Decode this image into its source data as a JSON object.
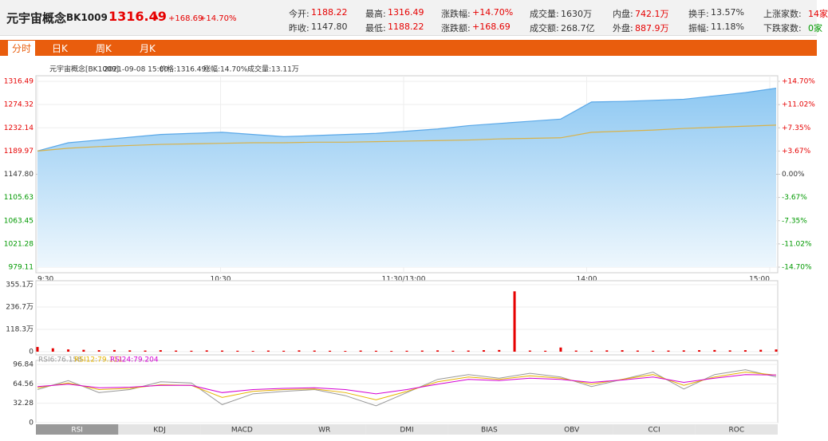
{
  "header": {
    "name": "元宇宙概念",
    "code": "BK1009",
    "price": "1316.49",
    "change": "+168.69",
    "change_pct": "+14.70%"
  },
  "stats": [
    {
      "label": "今开:",
      "value": "1188.22"
    },
    {
      "label": "昨收:",
      "value": "1147.80"
    },
    {
      "label": "最高:",
      "value": "1316.49"
    },
    {
      "label": "最低:",
      "value": "1188.22"
    },
    {
      "label": "涨跌幅:",
      "value": "+14.70%"
    },
    {
      "label": "涨跌额:",
      "value": "+168.69"
    },
    {
      "label": "成交量:",
      "value": "1630万"
    },
    {
      "label": "成交额:",
      "value": "268.7亿"
    },
    {
      "label": "内盘:",
      "value": "742.1万"
    },
    {
      "label": "外盘:",
      "value": "887.9万"
    },
    {
      "label": "换手:",
      "value": "13.57%"
    },
    {
      "label": "振幅:",
      "value": "11.18%"
    },
    {
      "label": "上涨家数:",
      "value": "14家"
    },
    {
      "label": "下跌家数:",
      "value": "0家"
    }
  ],
  "tabs": [
    "分时",
    "日K",
    "周K",
    "月K"
  ],
  "info": [
    "元宇宙概念[BK1009]",
    "2021-09-08 15:00",
    "价格:1316.49",
    "涨幅:14.70%",
    "成交量:13.11万"
  ],
  "indicator_tabs": [
    "RSI",
    "KDJ",
    "MACD",
    "WR",
    "DMI",
    "BIAS",
    "OBV",
    "CCI",
    "ROC"
  ],
  "chart_data": [
    {
      "type": "line",
      "x_labels": [
        "9:30",
        "10:30",
        "11:30/13:00",
        "14:00",
        "15:00"
      ],
      "ylim": [
        979.11,
        1316.49
      ],
      "yticks": [
        1316.49,
        1274.32,
        1232.14,
        1189.97,
        {
          "value": 1147.8,
          "label": "1147.80"
        },
        1105.63,
        1063.45,
        1021.28,
        979.11
      ],
      "y2lim": [
        -14.7,
        14.7
      ],
      "y2ticks": [
        {
          "value": 14.7,
          "label": "+14.70%"
        },
        {
          "value": 11.02,
          "label": "+11.02%"
        },
        {
          "value": 7.35,
          "label": "+7.35%"
        },
        {
          "value": 3.67,
          "label": "+3.67%"
        },
        {
          "value": 0,
          "label": "0.00%"
        },
        {
          "value": -3.67,
          "label": "-3.67%"
        },
        {
          "value": -7.35,
          "label": "-7.35%"
        },
        {
          "value": -11.02,
          "label": "-11.02%"
        },
        {
          "value": -14.7,
          "label": "-14.70%"
        }
      ],
      "series": [
        {
          "color": "#5aa8e8",
          "values": [
            1190,
            1205,
            1210,
            1215,
            1220,
            1222,
            1224,
            1220,
            1216,
            1218,
            1220,
            1222,
            1226,
            1230,
            1236,
            1240,
            1244,
            1248,
            1279,
            1280,
            1282,
            1284,
            1290,
            1296,
            1304
          ]
        },
        {
          "color": "#d8b24a",
          "values": [
            1190,
            1195,
            1198,
            1200,
            1202,
            1203,
            1204,
            1205,
            1205,
            1206,
            1206,
            1207,
            1208,
            1209,
            1210,
            1212,
            1213,
            1214,
            1224,
            1226,
            1228,
            1231,
            1233,
            1235,
            1237
          ]
        }
      ]
    },
    {
      "type": "bar",
      "ylim": [
        0,
        355.1
      ],
      "yticks": [
        {
          "value": 355.1,
          "label": "355.1万"
        },
        {
          "value": 236.7,
          "label": "236.7万"
        },
        {
          "value": 118.3,
          "label": "118.3万"
        },
        0
      ],
      "color": "#e60000",
      "values": [
        25,
        18,
        12,
        10,
        8,
        9,
        7,
        6,
        8,
        6,
        5,
        7,
        6,
        5,
        4,
        6,
        5,
        7,
        6,
        5,
        4,
        6,
        5,
        4,
        5,
        6,
        7,
        5,
        6,
        8,
        9,
        320,
        6,
        5,
        22,
        6,
        5,
        7,
        8,
        6,
        5,
        6,
        7,
        8,
        9,
        7,
        8,
        10,
        12
      ]
    },
    {
      "type": "line",
      "ylim": [
        0,
        96.84
      ],
      "yticks": [
        96.84,
        64.56,
        32.28,
        0
      ],
      "series": [
        {
          "name": "RSI6:76.158",
          "color": "#999999",
          "values": [
            55,
            70,
            50,
            55,
            68,
            66,
            30,
            48,
            52,
            55,
            45,
            28,
            50,
            72,
            80,
            74,
            82,
            76,
            60,
            72,
            84,
            56,
            80,
            88,
            76.158
          ]
        },
        {
          "name": "RSI12:79.111",
          "color": "#e6b400",
          "values": [
            58,
            66,
            55,
            57,
            63,
            62,
            42,
            52,
            55,
            56,
            50,
            38,
            52,
            68,
            76,
            72,
            78,
            74,
            64,
            72,
            80,
            62,
            76,
            84,
            79.111
          ]
        },
        {
          "name": "RSI24:79.204",
          "color": "#d400d4",
          "values": [
            60,
            64,
            58,
            59,
            62,
            62,
            50,
            55,
            57,
            58,
            55,
            48,
            55,
            64,
            72,
            70,
            74,
            72,
            67,
            71,
            76,
            67,
            74,
            80,
            79.204
          ]
        }
      ]
    }
  ]
}
